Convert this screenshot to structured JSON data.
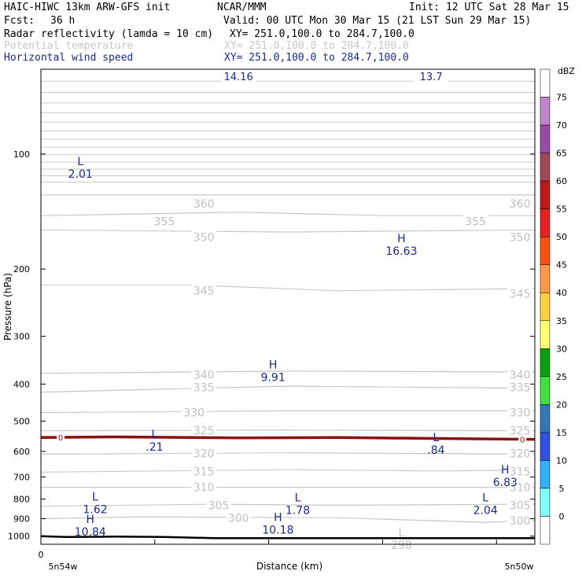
{
  "header": {
    "model": "HAIC-HIWC 13km ARW-GFS init",
    "org": "NCAR/MMM",
    "init": "Init: 12 UTC Sat 28 Mar 15",
    "fcst_label": "Fcst:",
    "fcst_value": "36 h",
    "valid": "Valid: 00 UTC Mon 30 Mar 15 (21 LST Sun 29 Mar 15)",
    "fields": [
      {
        "name": "Radar reflectivity (lamda = 10 cm)",
        "xy": "XY= 251.0,100.0 to 284.7,100.0",
        "color": "#000000"
      },
      {
        "name": "Potential temperature",
        "xy": "XY= 251.0,100.0 to 284.7,100.0",
        "color": "#c8c8c8"
      },
      {
        "name": "Horizontal wind speed",
        "xy": "XY= 251.0,100.0 to 284.7,100.0",
        "color": "#1a2a8a"
      }
    ]
  },
  "chart_data": {
    "type": "cross-section",
    "xlabel": "Distance (km)",
    "ylabel": "Pressure (hPa)",
    "x_ticks": [
      "0"
    ],
    "x_left_label": "5n54w",
    "x_right_label": "5n50w",
    "y_axis": {
      "scale": "log-pressure",
      "range": [
        1050,
        60
      ],
      "ticks": [
        100,
        200,
        300,
        400,
        500,
        600,
        700,
        800,
        900,
        1000
      ]
    },
    "theta_contours": [
      {
        "label": "360",
        "points": [
          [
            0,
            128
          ],
          [
            1,
            128
          ]
        ]
      },
      {
        "label": "355",
        "points": [
          [
            0,
            145
          ],
          [
            0.4,
            142
          ],
          [
            0.7,
            145
          ],
          [
            1,
            145
          ]
        ]
      },
      {
        "label": "350",
        "points": [
          [
            0,
            158
          ],
          [
            0.5,
            160
          ],
          [
            1,
            158
          ]
        ]
      },
      {
        "label": "345",
        "points": [
          [
            0,
            220
          ],
          [
            0.3,
            220
          ],
          [
            0.6,
            228
          ],
          [
            1,
            225
          ]
        ]
      },
      {
        "label": "340",
        "points": [
          [
            0,
            375
          ],
          [
            0.5,
            370
          ],
          [
            1,
            372
          ]
        ]
      },
      {
        "label": "335",
        "points": [
          [
            0,
            420
          ],
          [
            0.5,
            405
          ],
          [
            1,
            410
          ]
        ]
      },
      {
        "label": "330",
        "points": [
          [
            0,
            475
          ],
          [
            0.5,
            470
          ],
          [
            1,
            470
          ]
        ]
      },
      {
        "label": "325",
        "points": [
          [
            0,
            530
          ],
          [
            0.5,
            528
          ],
          [
            1,
            530
          ]
        ]
      },
      {
        "label": "320",
        "points": [
          [
            0,
            610
          ],
          [
            0.5,
            605
          ],
          [
            1,
            610
          ]
        ]
      },
      {
        "label": "315",
        "points": [
          [
            0,
            680
          ],
          [
            0.5,
            670
          ],
          [
            0.8,
            675
          ],
          [
            1,
            672
          ]
        ]
      },
      {
        "label": "310",
        "points": [
          [
            0,
            745
          ],
          [
            0.5,
            745
          ],
          [
            1,
            745
          ]
        ]
      },
      {
        "label": "305",
        "points": [
          [
            0,
            835
          ],
          [
            0.35,
            825
          ],
          [
            0.6,
            830
          ],
          [
            1,
            825
          ]
        ]
      },
      {
        "label": "300",
        "points": [
          [
            0,
            900
          ],
          [
            0.2,
            890
          ],
          [
            0.6,
            895
          ],
          [
            0.9,
            920
          ],
          [
            1,
            910
          ]
        ]
      }
    ],
    "theta_extra_labels": [
      {
        "text": "360",
        "x": 0.33,
        "p": 135
      },
      {
        "text": "360",
        "x": 0.97,
        "p": 135
      },
      {
        "text": "355",
        "x": 0.25,
        "p": 150
      },
      {
        "text": "355",
        "x": 0.88,
        "p": 150
      },
      {
        "text": "350",
        "x": 0.33,
        "p": 165
      },
      {
        "text": "350",
        "x": 0.97,
        "p": 165
      },
      {
        "text": "345",
        "x": 0.33,
        "p": 228
      },
      {
        "text": "345",
        "x": 0.97,
        "p": 232
      },
      {
        "text": "340",
        "x": 0.33,
        "p": 378
      },
      {
        "text": "340",
        "x": 0.97,
        "p": 378
      },
      {
        "text": "335",
        "x": 0.33,
        "p": 408
      },
      {
        "text": "335",
        "x": 0.97,
        "p": 408
      },
      {
        "text": "330",
        "x": 0.31,
        "p": 475
      },
      {
        "text": "330",
        "x": 0.97,
        "p": 475
      },
      {
        "text": "325",
        "x": 0.33,
        "p": 530
      },
      {
        "text": "325",
        "x": 0.97,
        "p": 530
      },
      {
        "text": "320",
        "x": 0.33,
        "p": 608
      },
      {
        "text": "320",
        "x": 0.97,
        "p": 608
      },
      {
        "text": "315",
        "x": 0.33,
        "p": 678
      },
      {
        "text": "315",
        "x": 0.97,
        "p": 678
      },
      {
        "text": "310",
        "x": 0.33,
        "p": 745
      },
      {
        "text": "310",
        "x": 0.97,
        "p": 745
      },
      {
        "text": "305",
        "x": 0.36,
        "p": 830
      },
      {
        "text": "305",
        "x": 0.97,
        "p": 830
      },
      {
        "text": "300",
        "x": 0.4,
        "p": 895
      },
      {
        "text": "300",
        "x": 0.97,
        "p": 910
      }
    ],
    "theta_extrema": [
      {
        "type": "L",
        "value": "298",
        "x": 0.73,
        "p": 1010
      }
    ],
    "wind_extrema": [
      {
        "type": "L",
        "value": "2.01",
        "x": 0.08,
        "p": 110
      },
      {
        "type": "H",
        "value": "16.63",
        "x": 0.73,
        "p": 175
      },
      {
        "type": "H",
        "value": "9.91",
        "x": 0.47,
        "p": 375
      },
      {
        "type": "L",
        "value": ".21",
        "x": 0.23,
        "p": 570
      },
      {
        "type": "L",
        "value": ".84",
        "x": 0.8,
        "p": 580
      },
      {
        "type": "H",
        "value": "6.83",
        "x": 0.94,
        "p": 705
      },
      {
        "type": "L",
        "value": "1.62",
        "x": 0.11,
        "p": 830
      },
      {
        "type": "L",
        "value": "1.78",
        "x": 0.52,
        "p": 835
      },
      {
        "type": "L",
        "value": "2.04",
        "x": 0.9,
        "p": 835
      },
      {
        "type": "H",
        "value": "10.84",
        "x": 0.1,
        "p": 950
      },
      {
        "type": "H",
        "value": "10.18",
        "x": 0.48,
        "p": 940
      }
    ],
    "wind_top_labels": [
      {
        "text": "14.16",
        "x": 0.4
      },
      {
        "text": "13.7",
        "x": 0.79
      }
    ],
    "zero_wind_contour": {
      "label": "0",
      "points": [
        [
          0,
          552
        ],
        [
          0.15,
          550
        ],
        [
          0.4,
          553
        ],
        [
          0.6,
          552
        ],
        [
          0.8,
          555
        ],
        [
          1,
          558
        ]
      ]
    },
    "terrain": {
      "points": [
        [
          0,
          1000
        ],
        [
          0.05,
          1005
        ],
        [
          0.15,
          1003
        ],
        [
          0.25,
          1005
        ],
        [
          0.35,
          1012
        ],
        [
          1,
          1012
        ]
      ]
    },
    "colorbar": {
      "title": "dBZ",
      "levels": [
        "75",
        "70",
        "65",
        "60",
        "55",
        "50",
        "45",
        "40",
        "35",
        "30",
        "25",
        "20",
        "15",
        "10",
        "5",
        "0"
      ],
      "colors": [
        "#ffffff",
        "#c084c8",
        "#9a4aa8",
        "#a04858",
        "#c01818",
        "#e82020",
        "#ff5010",
        "#ff9848",
        "#ffd040",
        "#ffff70",
        "#0aa010",
        "#40e040",
        "#3078b8",
        "#3050e0",
        "#30b0ff",
        "#80ffff",
        "#ffffff"
      ]
    }
  }
}
